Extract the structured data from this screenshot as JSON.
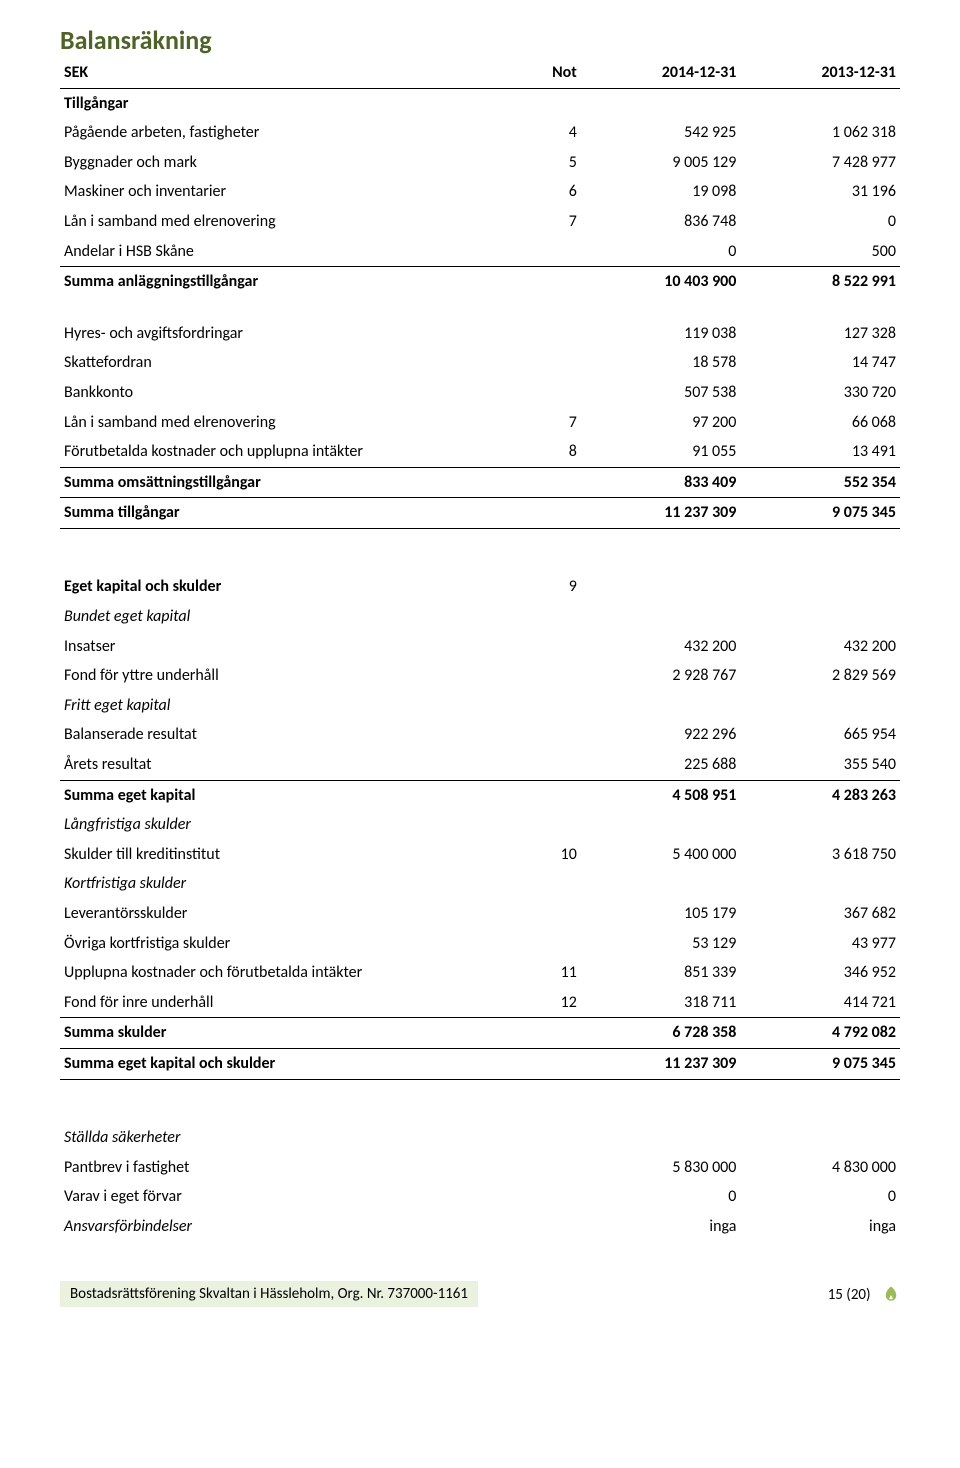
{
  "colors": {
    "heading": "#4f6228",
    "footer_bg": "#eaf1de",
    "leaf": "#9bbb59"
  },
  "title": "Balansräkning",
  "header": {
    "col0": "SEK",
    "col1": "Not",
    "col2": "2014-12-31",
    "col3": "2013-12-31"
  },
  "rows": [
    {
      "type": "section",
      "label": "Tillgångar"
    },
    {
      "type": "data",
      "label": "Pågående arbeten, fastigheter",
      "not": "4",
      "v1": "542 925",
      "v2": "1 062 318"
    },
    {
      "type": "data",
      "label": "Byggnader och mark",
      "not": "5",
      "v1": "9 005 129",
      "v2": "7 428 977"
    },
    {
      "type": "data",
      "label": "Maskiner och inventarier",
      "not": "6",
      "v1": "19 098",
      "v2": "31 196"
    },
    {
      "type": "data",
      "label": "Lån i samband med elrenovering",
      "not": "7",
      "v1": "836 748",
      "v2": "0"
    },
    {
      "type": "data",
      "label": "Andelar i HSB Skåne",
      "v1": "0",
      "v2": "500"
    },
    {
      "type": "sum",
      "label": "Summa anläggningstillgångar",
      "v1": "10 403 900",
      "v2": "8 522 991"
    },
    {
      "type": "spacer"
    },
    {
      "type": "data",
      "label": "Hyres- och avgiftsfordringar",
      "v1": "119 038",
      "v2": "127 328"
    },
    {
      "type": "data",
      "label": "Skattefordran",
      "v1": "18 578",
      "v2": "14 747"
    },
    {
      "type": "data",
      "label": "Bankkonto",
      "v1": "507 538",
      "v2": "330 720"
    },
    {
      "type": "data",
      "label": "Lån i samband med elrenovering",
      "not": "7",
      "v1": "97 200",
      "v2": "66 068"
    },
    {
      "type": "data",
      "label": "Förutbetalda kostnader och upplupna intäkter",
      "not": "8",
      "v1": "91 055",
      "v2": "13 491"
    },
    {
      "type": "sum",
      "label": "Summa omsättningstillgångar",
      "v1": "833 409",
      "v2": "552 354"
    },
    {
      "type": "sum-thick",
      "label": "Summa tillgångar",
      "v1": "11 237 309",
      "v2": "9 075 345"
    }
  ],
  "rows2": [
    {
      "type": "section",
      "label": "Eget kapital och skulder",
      "not": "9"
    },
    {
      "type": "italic",
      "label": "Bundet eget kapital"
    },
    {
      "type": "data",
      "label": "Insatser",
      "v1": "432 200",
      "v2": "432 200"
    },
    {
      "type": "data",
      "label": "Fond för yttre underhåll",
      "v1": "2 928 767",
      "v2": "2 829 569"
    },
    {
      "type": "italic",
      "label": "Fritt eget kapital"
    },
    {
      "type": "data",
      "label": "Balanserade resultat",
      "v1": "922 296",
      "v2": "665 954"
    },
    {
      "type": "data",
      "label": "Årets resultat",
      "v1": "225 688",
      "v2": "355 540"
    },
    {
      "type": "sum",
      "label": "Summa eget kapital",
      "v1": "4 508 951",
      "v2": "4 283 263"
    },
    {
      "type": "italic",
      "label": "Långfristiga skulder"
    },
    {
      "type": "data",
      "label": "Skulder till kreditinstitut",
      "not": "10",
      "v1": "5 400 000",
      "v2": "3 618 750"
    },
    {
      "type": "italic",
      "label": "Kortfristiga skulder"
    },
    {
      "type": "data",
      "label": "Leverantörsskulder",
      "v1": "105 179",
      "v2": "367 682"
    },
    {
      "type": "data",
      "label": "Övriga kortfristiga skulder",
      "v1": "53 129",
      "v2": "43 977"
    },
    {
      "type": "data",
      "label": "Upplupna kostnader och förutbetalda intäkter",
      "not": "11",
      "v1": "851 339",
      "v2": "346 952"
    },
    {
      "type": "data",
      "label": "Fond för inre underhåll",
      "not": "12",
      "v1": "318 711",
      "v2": "414 721"
    },
    {
      "type": "sum",
      "label": "Summa skulder",
      "v1": "6 728 358",
      "v2": "4 792 082"
    },
    {
      "type": "sum-thick",
      "label": "Summa eget kapital och skulder",
      "v1": "11 237 309",
      "v2": "9 075 345"
    }
  ],
  "rows3": [
    {
      "type": "italic",
      "label": "Ställda säkerheter"
    },
    {
      "type": "data",
      "label": "Pantbrev i fastighet",
      "v1": "5 830 000",
      "v2": "4 830 000"
    },
    {
      "type": "data",
      "label": "Varav i eget förvar",
      "v1": "0",
      "v2": "0"
    },
    {
      "type": "italic-data",
      "label": "Ansvarsförbindelser",
      "v1": "inga",
      "v2": "inga"
    }
  ],
  "footer": {
    "org_text": "Bostadsrättsförening Skvaltan i Hässleholm, Org. Nr. 737000-1161",
    "page": "15 (20)"
  }
}
